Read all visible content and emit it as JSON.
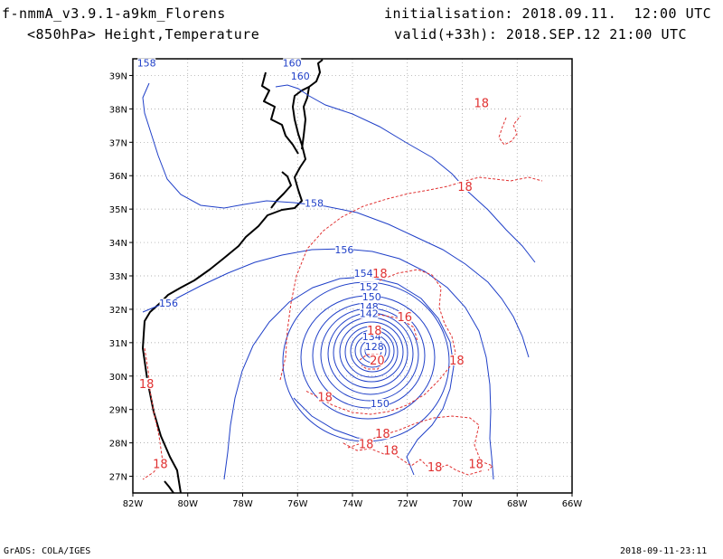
{
  "header": {
    "model": "f-nmmA_v3.9.1-a9km_Florens",
    "fields": "<850hPa> Height,Temperature",
    "init": "initialisation: 2018.09.11.  12:00 UTC",
    "valid": "valid(+33h): 2018.SEP.12 21:00 UTC"
  },
  "footer": {
    "left": "GrADS: COLA/IGES",
    "right": "2018-09-11-23:11"
  },
  "map": {
    "lon_ticks": [
      "82W",
      "80W",
      "78W",
      "76W",
      "74W",
      "72W",
      "70W",
      "68W",
      "66W"
    ],
    "lat_ticks": [
      "27N",
      "28N",
      "29N",
      "30N",
      "31N",
      "32N",
      "33N",
      "34N",
      "35N",
      "36N",
      "37N",
      "38N",
      "39N"
    ],
    "lon_range": [
      -82,
      -66
    ],
    "lat_range": [
      26.5,
      39.5
    ],
    "colors": {
      "height": "#2040c8",
      "temperature": "#e03030",
      "coast": "#000000",
      "grid": "#9a9a9a"
    }
  },
  "chart_data": {
    "type": "contour",
    "height_labels": [
      {
        "text": "158",
        "lon": -81.5,
        "lat": 39.3
      },
      {
        "text": "160",
        "lon": -76.2,
        "lat": 39.3
      },
      {
        "text": "160",
        "lon": -75.9,
        "lat": 38.9
      },
      {
        "text": "158",
        "lon": -75.4,
        "lat": 35.1
      },
      {
        "text": "156",
        "lon": -74.3,
        "lat": 33.7
      },
      {
        "text": "156",
        "lon": -80.7,
        "lat": 32.1
      },
      {
        "text": "154",
        "lon": -73.6,
        "lat": 33.0
      },
      {
        "text": "152",
        "lon": -73.4,
        "lat": 32.6
      },
      {
        "text": "150",
        "lon": -73.3,
        "lat": 32.3
      },
      {
        "text": "148",
        "lon": -73.4,
        "lat": 32.0
      },
      {
        "text": "142",
        "lon": -73.4,
        "lat": 31.8
      },
      {
        "text": "134",
        "lon": -73.3,
        "lat": 31.1
      },
      {
        "text": "128",
        "lon": -73.2,
        "lat": 30.8
      },
      {
        "text": "150",
        "lon": -73.0,
        "lat": 29.1
      }
    ],
    "temperature_labels": [
      {
        "text": "18",
        "lon": -69.3,
        "lat": 38.1
      },
      {
        "text": "18",
        "lon": -69.9,
        "lat": 35.6
      },
      {
        "text": "18",
        "lon": -73.0,
        "lat": 33.0
      },
      {
        "text": "16",
        "lon": -72.1,
        "lat": 31.7
      },
      {
        "text": "18",
        "lon": -73.2,
        "lat": 31.3
      },
      {
        "text": "20",
        "lon": -73.1,
        "lat": 30.4
      },
      {
        "text": "18",
        "lon": -70.2,
        "lat": 30.4
      },
      {
        "text": "18",
        "lon": -81.5,
        "lat": 29.7
      },
      {
        "text": "18",
        "lon": -75.0,
        "lat": 29.3
      },
      {
        "text": "18",
        "lon": -72.9,
        "lat": 28.2
      },
      {
        "text": "18",
        "lon": -73.5,
        "lat": 27.9
      },
      {
        "text": "18",
        "lon": -72.6,
        "lat": 27.7
      },
      {
        "text": "18",
        "lon": -81.0,
        "lat": 27.3
      },
      {
        "text": "18",
        "lon": -71.0,
        "lat": 27.2
      },
      {
        "text": "18",
        "lon": -69.5,
        "lat": 27.3
      }
    ]
  }
}
